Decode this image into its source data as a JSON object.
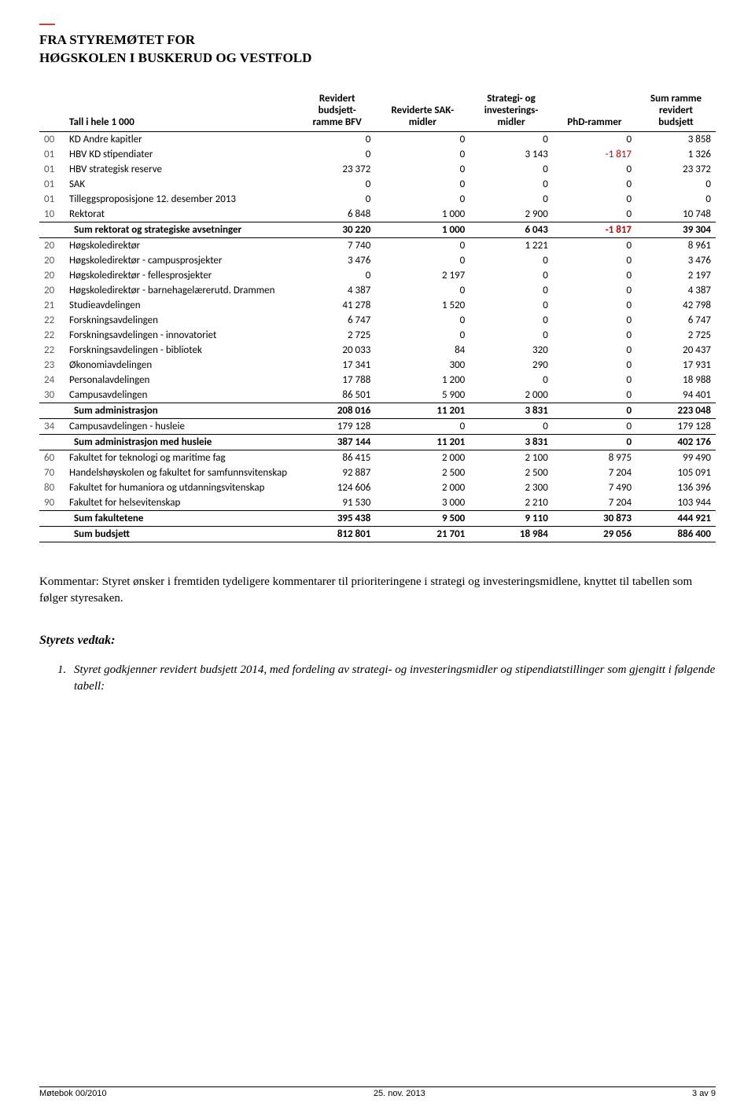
{
  "header": {
    "line1": "FRA STYREMØTET FOR",
    "line2": "HØGSKOLEN I BUSKERUD OG VESTFOLD"
  },
  "table": {
    "corner": "Tall i hele 1 000",
    "columns": [
      "Revidert budsjett-ramme BFV",
      "Reviderte SAK-midler",
      "Strategi- og investerings-midler",
      "PhD-rammer",
      "Sum ramme revidert budsjett"
    ],
    "rows": [
      {
        "code": "00",
        "label": "KD Andre kapitler",
        "v": [
          "0",
          "0",
          "0",
          "0",
          "3 858"
        ]
      },
      {
        "code": "01",
        "label": "HBV KD stipendiater",
        "v": [
          "0",
          "0",
          "3 143",
          "-1 817",
          "1 326"
        ]
      },
      {
        "code": "01",
        "label": "HBV strategisk reserve",
        "v": [
          "23 372",
          "0",
          "0",
          "0",
          "23 372"
        ]
      },
      {
        "code": "01",
        "label": "SAK",
        "v": [
          "0",
          "0",
          "0",
          "0",
          "0"
        ]
      },
      {
        "code": "01",
        "label": "Tilleggsproposisjone 12. desember 2013",
        "v": [
          "0",
          "0",
          "0",
          "0",
          "0"
        ]
      },
      {
        "code": "10",
        "label": "Rektorat",
        "v": [
          "6 848",
          "1 000",
          "2 900",
          "0",
          "10 748"
        ]
      },
      {
        "sum": true,
        "label": "Sum rektorat og strategiske avsetninger",
        "v": [
          "30 220",
          "1 000",
          "6 043",
          "-1 817",
          "39 304"
        ]
      },
      {
        "code": "20",
        "label": "Høgskoledirektør",
        "v": [
          "7 740",
          "0",
          "1 221",
          "0",
          "8 961"
        ]
      },
      {
        "code": "20",
        "label": "Høgskoledirektør - campusprosjekter",
        "v": [
          "3 476",
          "0",
          "0",
          "0",
          "3 476"
        ]
      },
      {
        "code": "20",
        "label": "Høgskoledirektør - fellesprosjekter",
        "v": [
          "0",
          "2 197",
          "0",
          "0",
          "2 197"
        ]
      },
      {
        "code": "20",
        "label": "Høgskoledirektør - barnehagelærerutd. Drammen",
        "v": [
          "4 387",
          "0",
          "0",
          "0",
          "4 387"
        ]
      },
      {
        "code": "21",
        "label": "Studieavdelingen",
        "v": [
          "41 278",
          "1 520",
          "0",
          "0",
          "42 798"
        ]
      },
      {
        "code": "22",
        "label": "Forskningsavdelingen",
        "v": [
          "6 747",
          "0",
          "0",
          "0",
          "6 747"
        ]
      },
      {
        "code": "22",
        "label": "Forskningsavdelingen - innovatoriet",
        "v": [
          "2 725",
          "0",
          "0",
          "0",
          "2 725"
        ]
      },
      {
        "code": "22",
        "label": "Forskningsavdelingen - bibliotek",
        "v": [
          "20 033",
          "84",
          "320",
          "0",
          "20 437"
        ]
      },
      {
        "code": "23",
        "label": "Økonomiavdelingen",
        "v": [
          "17 341",
          "300",
          "290",
          "0",
          "17 931"
        ]
      },
      {
        "code": "24",
        "label": "Personalavdelingen",
        "v": [
          "17 788",
          "1 200",
          "0",
          "0",
          "18 988"
        ]
      },
      {
        "code": "30",
        "label": "Campusavdelingen",
        "v": [
          "86 501",
          "5 900",
          "2 000",
          "0",
          "94 401"
        ]
      },
      {
        "sum": true,
        "label": "Sum administrasjon",
        "v": [
          "208 016",
          "11 201",
          "3 831",
          "0",
          "223 048"
        ]
      },
      {
        "code": "34",
        "label": "Campusavdelingen - husleie",
        "v": [
          "179 128",
          "0",
          "0",
          "0",
          "179 128"
        ]
      },
      {
        "sum": true,
        "label": "Sum administrasjon med husleie",
        "v": [
          "387 144",
          "11 201",
          "3 831",
          "0",
          "402 176"
        ]
      },
      {
        "code": "60",
        "label": "Fakultet for teknologi og maritime fag",
        "v": [
          "86 415",
          "2 000",
          "2 100",
          "8 975",
          "99 490"
        ]
      },
      {
        "code": "70",
        "label": "Handelshøyskolen og fakultet for samfunnsvitenskap",
        "v": [
          "92 887",
          "2 500",
          "2 500",
          "7 204",
          "105 091"
        ]
      },
      {
        "code": "80",
        "label": "Fakultet for humaniora og utdanningsvitenskap",
        "v": [
          "124 606",
          "2 000",
          "2 300",
          "7 490",
          "136 396"
        ]
      },
      {
        "code": "90",
        "label": "Fakultet for helsevitenskap",
        "v": [
          "91 530",
          "3 000",
          "2 210",
          "7 204",
          "103 944"
        ]
      },
      {
        "sum": true,
        "label": "Sum fakultetene",
        "v": [
          "395 438",
          "9 500",
          "9 110",
          "30 873",
          "444 921"
        ]
      },
      {
        "sum": true,
        "label": "Sum budsjett",
        "v": [
          "812 801",
          "21 701",
          "18 984",
          "29 056",
          "886 400"
        ]
      }
    ]
  },
  "comment": "Kommentar: Styret ønsker i fremtiden tydeligere kommentarer til prioriteringene i strategi og investeringsmidlene, knyttet til tabellen som følger styresaken.",
  "vedtak_heading": "Styrets vedtak:",
  "vedtak_item": "Styret godkjenner revidert budsjett 2014, med fordeling av strategi- og investeringsmidler og stipendiatstillinger som gjengitt i følgende tabell:",
  "footer": {
    "left": "Møtebok 00/2010",
    "center": "25. nov. 2013",
    "right": "3 av 9"
  }
}
